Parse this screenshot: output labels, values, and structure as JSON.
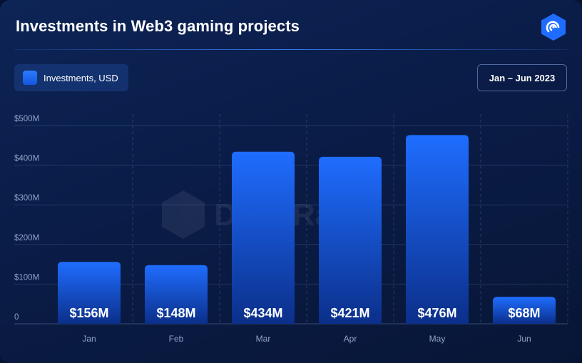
{
  "header": {
    "title": "Investments in Web3 gaming projects",
    "brand_icon": "deep-data-logo-icon"
  },
  "legend": {
    "label": "Investments, USD"
  },
  "period": {
    "label": "Jan – Jun 2023"
  },
  "watermark": {
    "text": "DappRadar"
  },
  "colors": {
    "bar_top": "#1f6dff",
    "bar_bottom": "#0b2f8a",
    "accent": "#2a7cff",
    "axis_text": "#8fa3c8"
  },
  "chart_data": {
    "type": "bar",
    "categories": [
      "Jan",
      "Feb",
      "Mar",
      "Apr",
      "May",
      "Jun"
    ],
    "values": [
      156,
      148,
      434,
      421,
      476,
      68
    ],
    "value_labels": [
      "$156M",
      "$148M",
      "$434M",
      "$421M",
      "$476M",
      "$68M"
    ],
    "yticks": [
      0,
      100,
      200,
      300,
      400,
      500
    ],
    "ytick_labels": [
      "0",
      "$100M",
      "$200M",
      "$300M",
      "$400M",
      "$500M"
    ],
    "ylim": [
      0,
      500
    ],
    "series": [
      {
        "name": "Investments, USD",
        "values": [
          156,
          148,
          434,
          421,
          476,
          68
        ]
      }
    ],
    "grid": true,
    "legend_position": "top-left",
    "title": "Investments in Web3 gaming projects"
  }
}
